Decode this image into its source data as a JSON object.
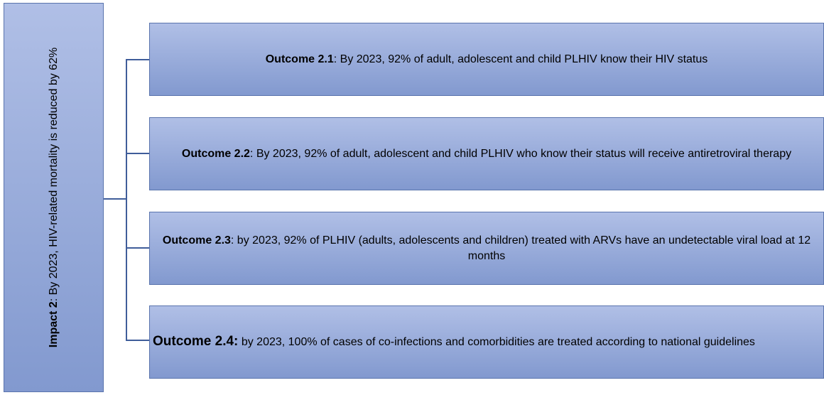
{
  "impact": {
    "label": "Impact 2",
    "text": ": By 2023, HIV-related mortality is reduced by 62%"
  },
  "outcomes": [
    {
      "label": "Outcome 2.1",
      "text": ": By 2023, 92% of adult, adolescent and child PLHIV know their HIV status"
    },
    {
      "label": "Outcome 2.2",
      "text": ": By 2023, 92% of adult, adolescent and child PLHIV who know their status will receive antiretroviral therapy"
    },
    {
      "label": "Outcome 2.3",
      "text": ": by 2023, 92% of PLHIV (adults, adolescents and children) treated with ARVs have an undetectable viral load at 12 months"
    },
    {
      "label": "Outcome 2.4:",
      "text": " by 2023, 100% of cases of co-infections and comorbidities are treated according to national guidelines"
    }
  ]
}
